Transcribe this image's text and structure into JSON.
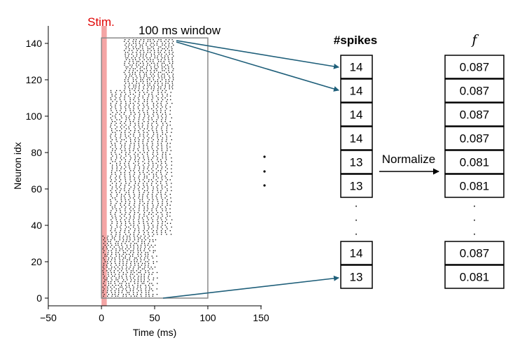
{
  "raster": {
    "stim_label": "Stim.",
    "window_label": "100 ms window",
    "xlabel": "Time (ms)",
    "ylabel": "Neuron idx",
    "x_ticks": [
      "−50",
      "0",
      "50",
      "100",
      "150"
    ],
    "y_ticks": [
      "0",
      "20",
      "40",
      "60",
      "80",
      "100",
      "120",
      "140"
    ],
    "xlim": [
      -50,
      150
    ],
    "ylim": [
      0,
      143
    ],
    "stim_interval_ms": [
      0,
      5
    ],
    "window_ms": [
      0,
      100
    ],
    "colors": {
      "stim": "#f4a5a5",
      "stim_text": "#e00000",
      "window": "#8a8a8a",
      "spikes": "#000000"
    }
  },
  "spike_column": {
    "header": "#spikes",
    "cells_top": [
      "14",
      "14",
      "14",
      "14",
      "13",
      "13"
    ],
    "cells_bottom": [
      "14",
      "13"
    ],
    "ellipsis": "·"
  },
  "normalize_label": "Normalize",
  "f_column": {
    "header": "f",
    "cells_top": [
      "0.087",
      "0.087",
      "0.087",
      "0.087",
      "0.081",
      "0.081"
    ],
    "cells_bottom": [
      "0.087",
      "0.081"
    ],
    "ellipsis": "·"
  },
  "middle_ellipsis": "·",
  "arrow_color": "#1f5f7a"
}
